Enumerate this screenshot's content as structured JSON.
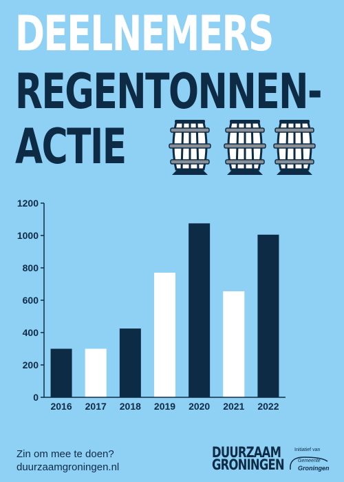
{
  "title": {
    "line1": "DEELNEMERS",
    "line2": "REGENTONNEN-",
    "line3": "ACTIE"
  },
  "colors": {
    "background": "#8fd0f5",
    "dark": "#0d2b45",
    "light": "#ffffff",
    "barrel_metal": "#8a8f96"
  },
  "icons": [
    "rain-barrel-icon",
    "rain-barrel-icon",
    "rain-barrel-icon"
  ],
  "chart_data": {
    "type": "bar",
    "categories": [
      "2016",
      "2017",
      "2018",
      "2019",
      "2020",
      "2021",
      "2022"
    ],
    "values": [
      300,
      300,
      425,
      770,
      1075,
      655,
      1005
    ],
    "bar_colors": [
      "#0d2b45",
      "#ffffff",
      "#0d2b45",
      "#ffffff",
      "#0d2b45",
      "#ffffff",
      "#0d2b45"
    ],
    "yticks": [
      0,
      200,
      400,
      600,
      800,
      1000,
      1200
    ],
    "ylim": [
      0,
      1200
    ],
    "xlabel": "",
    "ylabel": "",
    "grid": false
  },
  "footer": {
    "line1": "Zin om mee te doen?",
    "line2": "duurzaamgroningen.nl"
  },
  "logo": {
    "line1": "DUURZAAM",
    "line2": "GRONINGEN"
  },
  "initiative": {
    "label": "Initiatief van",
    "small": "Gemeente",
    "name": "Groningen"
  }
}
